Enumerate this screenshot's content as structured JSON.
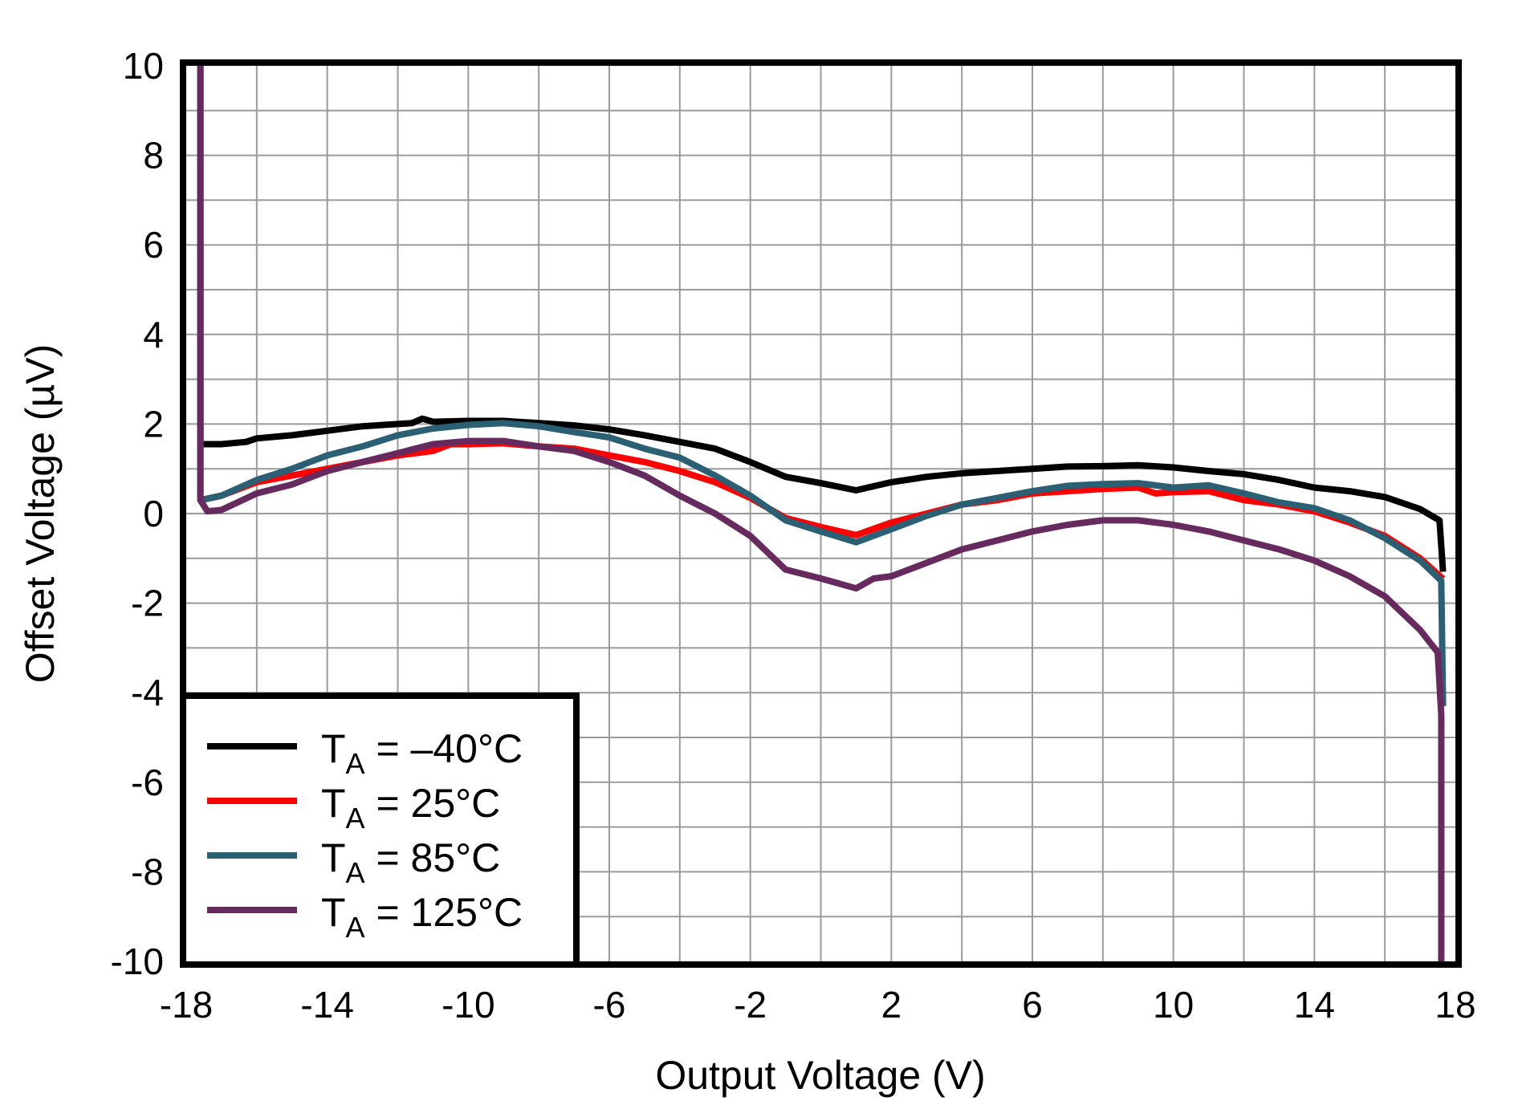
{
  "chart_data": {
    "type": "line",
    "title": "",
    "xlabel": "Output Voltage (V)",
    "ylabel": "Offset Voltage (µV)",
    "xlim": [
      -18,
      18
    ],
    "ylim": [
      -10,
      10
    ],
    "x_ticks": [
      -18,
      -14,
      -10,
      -6,
      -2,
      2,
      6,
      10,
      14,
      18
    ],
    "y_ticks": [
      10,
      8,
      6,
      4,
      2,
      0,
      -2,
      -4,
      -6,
      -8,
      -10
    ],
    "x_grid_step": 2,
    "y_grid_step": 1,
    "grid": true,
    "legend_position": "lower-left",
    "series": [
      {
        "name": "TA = –40°C",
        "legend_main": "T",
        "legend_sub": "A",
        "legend_rest": " = –40°C",
        "color": "#000000",
        "points": [
          [
            -17.6,
            10
          ],
          [
            -17.6,
            1.55
          ],
          [
            -17,
            1.55
          ],
          [
            -16.3,
            1.6
          ],
          [
            -16,
            1.68
          ],
          [
            -15,
            1.75
          ],
          [
            -14,
            1.85
          ],
          [
            -13,
            1.95
          ],
          [
            -12,
            2.0
          ],
          [
            -11.6,
            2.02
          ],
          [
            -11.3,
            2.12
          ],
          [
            -11,
            2.05
          ],
          [
            -10,
            2.07
          ],
          [
            -9,
            2.07
          ],
          [
            -8,
            2.02
          ],
          [
            -7,
            1.97
          ],
          [
            -6,
            1.88
          ],
          [
            -5,
            1.75
          ],
          [
            -4,
            1.6
          ],
          [
            -3,
            1.45
          ],
          [
            -2,
            1.15
          ],
          [
            -1,
            0.82
          ],
          [
            0,
            0.68
          ],
          [
            1,
            0.52
          ],
          [
            2,
            0.7
          ],
          [
            3,
            0.82
          ],
          [
            4,
            0.9
          ],
          [
            5,
            0.95
          ],
          [
            6,
            1.0
          ],
          [
            7,
            1.05
          ],
          [
            8,
            1.06
          ],
          [
            9,
            1.08
          ],
          [
            10,
            1.03
          ],
          [
            11,
            0.95
          ],
          [
            12,
            0.88
          ],
          [
            13,
            0.75
          ],
          [
            14,
            0.58
          ],
          [
            15,
            0.5
          ],
          [
            16,
            0.37
          ],
          [
            17,
            0.1
          ],
          [
            17.55,
            -0.15
          ],
          [
            17.65,
            -1.3
          ]
        ]
      },
      {
        "name": "TA = 25°C",
        "legend_main": "T",
        "legend_sub": "A",
        "legend_rest": " = 25°C",
        "color": "#FF0000",
        "points": [
          [
            -17.6,
            6.0
          ],
          [
            -17.6,
            0.3
          ],
          [
            -17,
            0.4
          ],
          [
            -16,
            0.7
          ],
          [
            -15,
            0.85
          ],
          [
            -14,
            1.0
          ],
          [
            -13,
            1.15
          ],
          [
            -12,
            1.3
          ],
          [
            -11,
            1.4
          ],
          [
            -10.5,
            1.55
          ],
          [
            -10,
            1.55
          ],
          [
            -9,
            1.57
          ],
          [
            -8,
            1.5
          ],
          [
            -7,
            1.45
          ],
          [
            -6,
            1.3
          ],
          [
            -5,
            1.15
          ],
          [
            -4,
            0.95
          ],
          [
            -3,
            0.7
          ],
          [
            -2,
            0.35
          ],
          [
            -1,
            -0.1
          ],
          [
            0,
            -0.3
          ],
          [
            1,
            -0.48
          ],
          [
            2,
            -0.2
          ],
          [
            3,
            0.0
          ],
          [
            4,
            0.2
          ],
          [
            5,
            0.3
          ],
          [
            6,
            0.45
          ],
          [
            7,
            0.5
          ],
          [
            8,
            0.55
          ],
          [
            9,
            0.58
          ],
          [
            9.5,
            0.45
          ],
          [
            10,
            0.48
          ],
          [
            11,
            0.5
          ],
          [
            12,
            0.3
          ],
          [
            13,
            0.2
          ],
          [
            14,
            0.05
          ],
          [
            15,
            -0.2
          ],
          [
            16,
            -0.5
          ],
          [
            17,
            -1.0
          ],
          [
            17.65,
            -1.46
          ]
        ]
      },
      {
        "name": "TA = 85°C",
        "legend_main": "T",
        "legend_sub": "A",
        "legend_rest": " = 85°C",
        "color": "#2B5F73",
        "points": [
          [
            -17.6,
            10
          ],
          [
            -17.6,
            0.3
          ],
          [
            -17,
            0.4
          ],
          [
            -16,
            0.75
          ],
          [
            -15,
            1.0
          ],
          [
            -14,
            1.3
          ],
          [
            -13,
            1.5
          ],
          [
            -12,
            1.75
          ],
          [
            -11,
            1.9
          ],
          [
            -10,
            1.98
          ],
          [
            -9,
            2.02
          ],
          [
            -8,
            1.95
          ],
          [
            -7,
            1.82
          ],
          [
            -6,
            1.7
          ],
          [
            -5,
            1.45
          ],
          [
            -4,
            1.25
          ],
          [
            -3,
            0.85
          ],
          [
            -2,
            0.4
          ],
          [
            -1,
            -0.15
          ],
          [
            0,
            -0.4
          ],
          [
            1,
            -0.64
          ],
          [
            2,
            -0.35
          ],
          [
            3,
            -0.05
          ],
          [
            4,
            0.2
          ],
          [
            5,
            0.35
          ],
          [
            6,
            0.5
          ],
          [
            7,
            0.62
          ],
          [
            8,
            0.66
          ],
          [
            9,
            0.68
          ],
          [
            10,
            0.58
          ],
          [
            11,
            0.63
          ],
          [
            12,
            0.45
          ],
          [
            13,
            0.25
          ],
          [
            14,
            0.12
          ],
          [
            15,
            -0.15
          ],
          [
            16,
            -0.55
          ],
          [
            17,
            -1.05
          ],
          [
            17.6,
            -1.5
          ],
          [
            17.65,
            -4.3
          ]
        ]
      },
      {
        "name": "TA = 125°C",
        "legend_main": "T",
        "legend_sub": "A",
        "legend_rest": " = 125°C",
        "color": "#662A5F",
        "points": [
          [
            -17.6,
            10
          ],
          [
            -17.6,
            0.3
          ],
          [
            -17.4,
            0.05
          ],
          [
            -17,
            0.08
          ],
          [
            -16,
            0.45
          ],
          [
            -15,
            0.65
          ],
          [
            -14,
            0.95
          ],
          [
            -13,
            1.15
          ],
          [
            -12,
            1.35
          ],
          [
            -11,
            1.55
          ],
          [
            -10,
            1.62
          ],
          [
            -9,
            1.62
          ],
          [
            -8,
            1.5
          ],
          [
            -7,
            1.4
          ],
          [
            -6,
            1.15
          ],
          [
            -5,
            0.85
          ],
          [
            -4,
            0.4
          ],
          [
            -3,
            0.0
          ],
          [
            -2,
            -0.5
          ],
          [
            -1,
            -1.25
          ],
          [
            0,
            -1.45
          ],
          [
            1,
            -1.67
          ],
          [
            1.5,
            -1.45
          ],
          [
            2,
            -1.4
          ],
          [
            3,
            -1.1
          ],
          [
            4,
            -0.8
          ],
          [
            5,
            -0.6
          ],
          [
            6,
            -0.4
          ],
          [
            7,
            -0.25
          ],
          [
            8,
            -0.15
          ],
          [
            9,
            -0.15
          ],
          [
            10,
            -0.25
          ],
          [
            11,
            -0.4
          ],
          [
            12,
            -0.6
          ],
          [
            13,
            -0.8
          ],
          [
            14,
            -1.05
          ],
          [
            15,
            -1.4
          ],
          [
            16,
            -1.85
          ],
          [
            17,
            -2.6
          ],
          [
            17.5,
            -3.1
          ],
          [
            17.6,
            -4.5
          ],
          [
            17.6,
            -10
          ]
        ]
      }
    ]
  },
  "axes": {
    "x_title": "Output Voltage (V)",
    "y_title": "Offset Voltage (µV)"
  }
}
